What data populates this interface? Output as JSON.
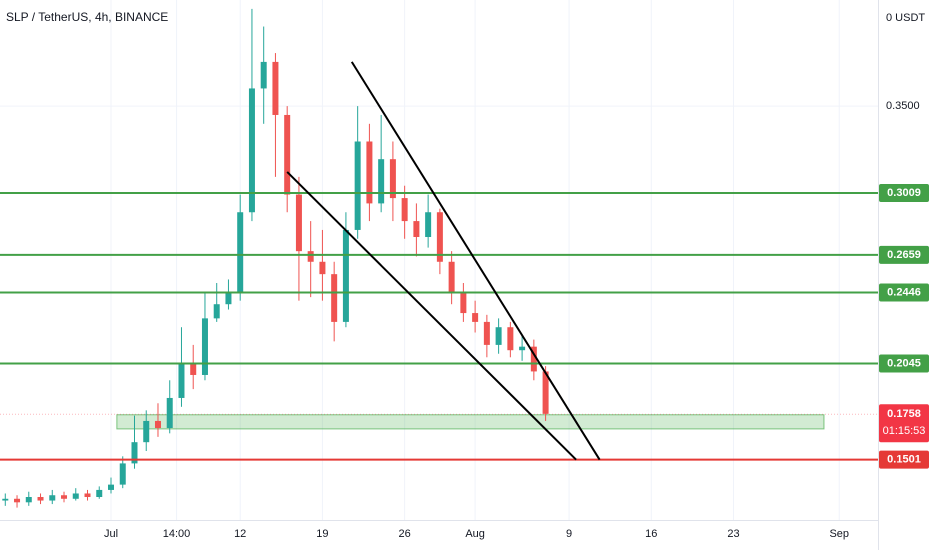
{
  "chart_data": {
    "type": "candlestick",
    "title": "SLP / TetherUS, 4h, BINANCE",
    "currency_label": "0 USDT",
    "x": [
      -9,
      -8,
      -7,
      -6,
      -5,
      -4,
      -3,
      -2,
      -1,
      0,
      1,
      2,
      3,
      4,
      5,
      6,
      7,
      8,
      9,
      10,
      11,
      12,
      13,
      14,
      15,
      16,
      17,
      18,
      19,
      20,
      21,
      22,
      23,
      24,
      25,
      26,
      27,
      28,
      29,
      30,
      31,
      32,
      33,
      34,
      35,
      36,
      37
    ],
    "open": [
      0.127,
      0.128,
      0.126,
      0.129,
      0.127,
      0.13,
      0.128,
      0.131,
      0.129,
      0.133,
      0.136,
      0.148,
      0.16,
      0.172,
      0.168,
      0.185,
      0.205,
      0.198,
      0.23,
      0.238,
      0.245,
      0.29,
      0.36,
      0.375,
      0.345,
      0.3,
      0.268,
      0.262,
      0.255,
      0.228,
      0.28,
      0.33,
      0.295,
      0.32,
      0.298,
      0.285,
      0.276,
      0.29,
      0.262,
      0.245,
      0.233,
      0.228,
      0.215,
      0.225,
      0.212,
      0.214,
      0.2
    ],
    "high": [
      0.131,
      0.13,
      0.132,
      0.131,
      0.133,
      0.132,
      0.134,
      0.133,
      0.135,
      0.14,
      0.152,
      0.175,
      0.178,
      0.182,
      0.195,
      0.225,
      0.215,
      0.245,
      0.25,
      0.252,
      0.3,
      0.405,
      0.395,
      0.38,
      0.35,
      0.31,
      0.285,
      0.28,
      0.262,
      0.29,
      0.35,
      0.34,
      0.345,
      0.33,
      0.305,
      0.295,
      0.3,
      0.292,
      0.268,
      0.25,
      0.24,
      0.232,
      0.23,
      0.228,
      0.22,
      0.218,
      0.203
    ],
    "low": [
      0.124,
      0.123,
      0.124,
      0.125,
      0.125,
      0.126,
      0.127,
      0.127,
      0.128,
      0.131,
      0.134,
      0.145,
      0.155,
      0.163,
      0.165,
      0.18,
      0.19,
      0.195,
      0.228,
      0.235,
      0.24,
      0.285,
      0.34,
      0.31,
      0.29,
      0.24,
      0.242,
      0.24,
      0.217,
      0.225,
      0.275,
      0.285,
      0.29,
      0.285,
      0.275,
      0.265,
      0.27,
      0.255,
      0.238,
      0.228,
      0.222,
      0.208,
      0.21,
      0.208,
      0.206,
      0.195,
      0.172
    ],
    "close": [
      0.128,
      0.126,
      0.129,
      0.127,
      0.13,
      0.128,
      0.131,
      0.129,
      0.133,
      0.136,
      0.148,
      0.16,
      0.172,
      0.168,
      0.185,
      0.205,
      0.198,
      0.23,
      0.238,
      0.245,
      0.29,
      0.36,
      0.375,
      0.345,
      0.3,
      0.268,
      0.262,
      0.255,
      0.228,
      0.28,
      0.33,
      0.295,
      0.32,
      0.298,
      0.285,
      0.276,
      0.29,
      0.262,
      0.245,
      0.233,
      0.228,
      0.215,
      0.225,
      0.212,
      0.214,
      0.2,
      0.176
    ],
    "up_color": "#26a69a",
    "down_color": "#ef5350",
    "xlim": [
      -9.45,
      65.3
    ],
    "ylim": [
      0.116,
      0.41
    ],
    "xticks": [
      {
        "value": 0,
        "label": "Jul"
      },
      {
        "value": 5.58,
        "label": "14:00"
      },
      {
        "value": 11,
        "label": "12"
      },
      {
        "value": 18,
        "label": "19"
      },
      {
        "value": 25,
        "label": "26"
      },
      {
        "value": 31,
        "label": "Aug"
      },
      {
        "value": 39,
        "label": "9"
      },
      {
        "value": 46,
        "label": "16"
      },
      {
        "value": 53,
        "label": "23"
      },
      {
        "value": 62,
        "label": "Sep"
      }
    ],
    "yticks": [
      {
        "value": 0.35,
        "label": "0.3500"
      }
    ],
    "grid": true,
    "levels": [
      {
        "value": 0.3009,
        "color": "#43a047"
      },
      {
        "value": 0.2659,
        "color": "#43a047"
      },
      {
        "value": 0.2446,
        "color": "#43a047"
      },
      {
        "value": 0.2045,
        "color": "#43a047"
      },
      {
        "value": 0.1501,
        "color": "#e53935"
      }
    ],
    "current_price": {
      "value": 0.1758,
      "countdown": "01:15:53",
      "color": "#f23645"
    },
    "zones": [
      {
        "xlim": [
          0.5,
          60.7
        ],
        "ylim": [
          0.1675,
          0.1755
        ],
        "color": "#4caf50"
      }
    ],
    "trendlines": [
      {
        "x": [
          20.5,
          41.6
        ],
        "y": [
          0.375,
          0.1501
        ],
        "color": "#000000"
      },
      {
        "x": [
          15.0,
          39.6
        ],
        "y": [
          0.3128,
          0.1501
        ],
        "color": "#000000"
      }
    ]
  }
}
